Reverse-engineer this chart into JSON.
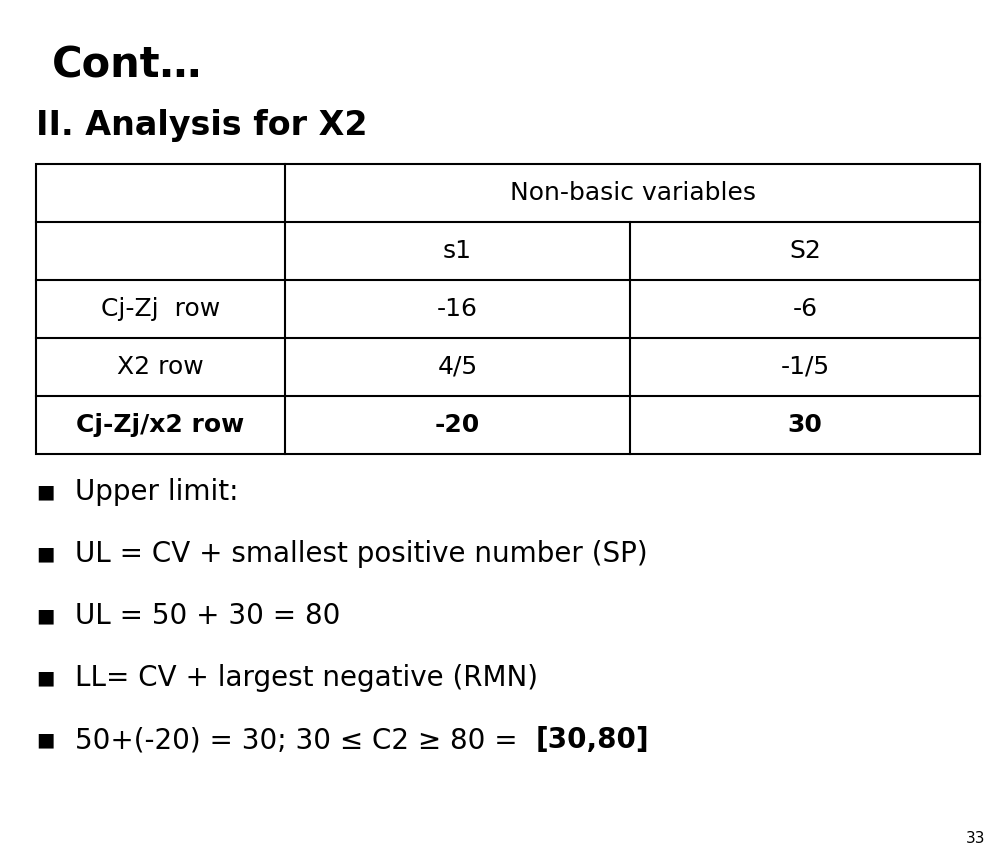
{
  "title": "Cont…",
  "subtitle": "II. Analysis for X2",
  "table": {
    "header_row1_text": "Non-basic variables",
    "header_row2": [
      "s1",
      "S2"
    ],
    "rows": [
      [
        "Cj-Zj  row",
        "-16",
        "-6"
      ],
      [
        "X2 row",
        "4/5",
        "-1/5"
      ],
      [
        "Cj-Zj/x2 row",
        "-20",
        "30"
      ]
    ]
  },
  "bullets": [
    {
      "text": "Upper limit:",
      "bold_suffix": ""
    },
    {
      "text": "UL = CV + smallest positive number (SP)",
      "bold_suffix": ""
    },
    {
      "text": "UL = 50 + 30 = 80",
      "bold_suffix": ""
    },
    {
      "text": "LL= CV + largest negative (RMN)",
      "bold_suffix": ""
    },
    {
      "text": "50+(-20) = 30; 30 ≤ C2 ≥ 80 =  ",
      "bold_suffix": "[30,80]"
    }
  ],
  "page_number": "33",
  "bg_color": "#ffffff",
  "text_color": "#000000",
  "title_fontsize": 30,
  "subtitle_fontsize": 24,
  "table_fontsize": 18,
  "bullet_fontsize": 20
}
